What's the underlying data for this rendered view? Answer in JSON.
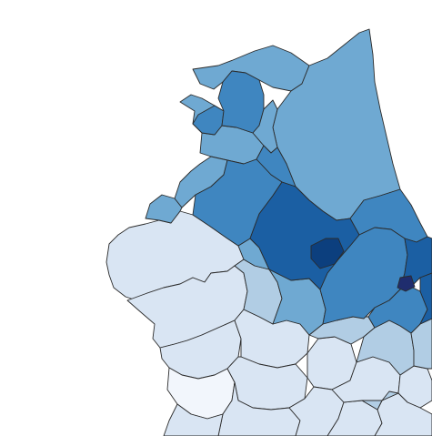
{
  "map": {
    "type": "choropleth",
    "palette": {
      "c1": "#f2f6fc",
      "c2": "#d9e5f3",
      "c3": "#b1cde4",
      "c4": "#6fa9d2",
      "c5": "#3f86c0",
      "c6": "#1b5fa3",
      "c7": "#0c3f7e",
      "c8": "#1f2d6e",
      "border": "#2b2b2b",
      "background": "#ffffff"
    }
  }
}
